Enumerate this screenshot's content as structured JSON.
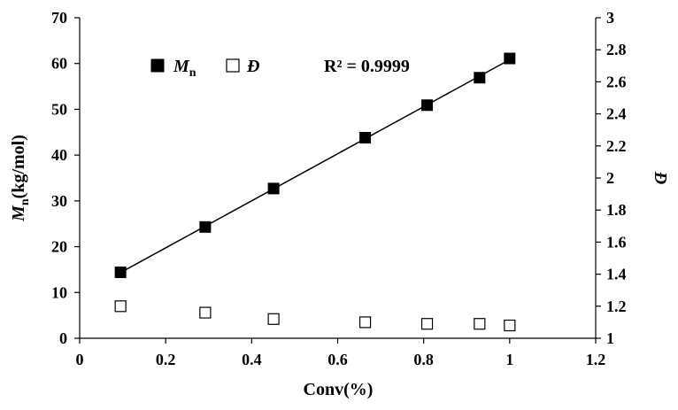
{
  "chart_data": {
    "type": "scatter",
    "xlabel": "Conv(%)",
    "ylabel": "Mn(kg/mol)",
    "ylabel_main": "M",
    "ylabel_sub": "n",
    "ylabel_rest": "(kg/mol)",
    "y2label": "Đ",
    "xlim": [
      0,
      1.2
    ],
    "ylim": [
      0,
      70
    ],
    "y2lim": [
      1,
      3
    ],
    "xticks": [
      "0",
      "0.2",
      "0.4",
      "0.6",
      "0.8",
      "1",
      "1.2"
    ],
    "yticks": [
      "0",
      "10",
      "20",
      "30",
      "40",
      "50",
      "60",
      "70"
    ],
    "y2ticks": [
      "1",
      "1.2",
      "1.4",
      "1.6",
      "1.8",
      "2",
      "2.2",
      "2.4",
      "2.6",
      "2.8",
      "3"
    ],
    "grid": false,
    "legend_position": "top-left",
    "series": [
      {
        "name": "Mn",
        "legend_main": "M",
        "legend_sub": "n",
        "marker": "filled-square",
        "axis": "left",
        "x": [
          0.095,
          0.292,
          0.451,
          0.664,
          0.808,
          0.93,
          1.0
        ],
        "y": [
          14.4,
          24.3,
          32.7,
          43.8,
          50.9,
          56.9,
          61.1
        ],
        "trendline": "linear"
      },
      {
        "name": "Đ",
        "marker": "open-square",
        "axis": "right",
        "x": [
          0.095,
          0.292,
          0.451,
          0.664,
          0.808,
          0.93,
          1.0
        ],
        "y": [
          1.2,
          1.16,
          1.12,
          1.1,
          1.09,
          1.09,
          1.08
        ]
      }
    ],
    "annotations": [
      {
        "text": "R² = 0.9999"
      }
    ],
    "colors": {
      "marker": "#000000",
      "line": "#000000",
      "background": "#ffffff"
    }
  }
}
